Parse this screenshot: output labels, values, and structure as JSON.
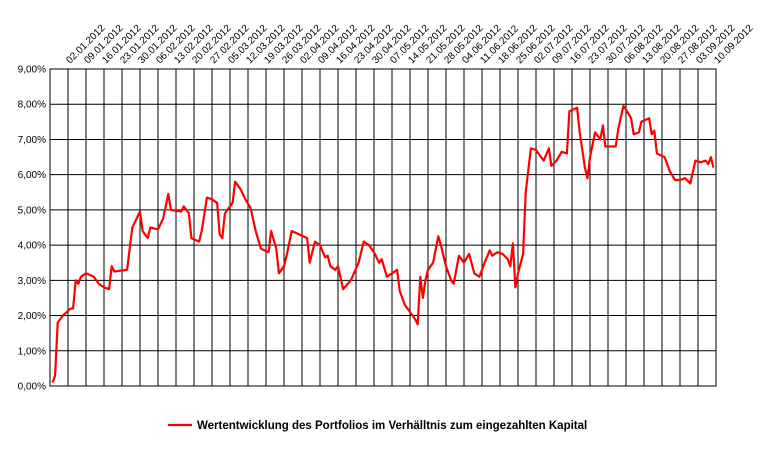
{
  "chart_data": {
    "type": "line",
    "x": [
      "27.12.2011",
      "28.12.2011",
      "29.12.2011",
      "31.12.2011",
      "03.01.2012",
      "04.01.2012",
      "05.01.2012",
      "06.01.2012",
      "07.01.2012",
      "09.01.2012",
      "12.01.2012",
      "14.01.2012",
      "16.01.2012",
      "18.01.2012",
      "19.01.2012",
      "20.01.2012",
      "25.01.2012",
      "27.01.2012",
      "30.01.2012",
      "31.01.2012",
      "02.02.2012",
      "03.02.2012",
      "06.02.2012",
      "08.02.2012",
      "10.02.2012",
      "11.02.2012",
      "15.02.2012",
      "16.02.2012",
      "18.02.2012",
      "19.02.2012",
      "22.02.2012",
      "23.02.2012",
      "25.02.2012",
      "27.02.2012",
      "29.02.2012",
      "01.03.2012",
      "02.03.2012",
      "03.03.2012",
      "06.03.2012",
      "07.03.2012",
      "09.03.2012",
      "11.03.2012",
      "13.03.2012",
      "15.03.2012",
      "17.03.2012",
      "20.03.2012",
      "21.03.2012",
      "23.03.2012",
      "24.03.2012",
      "26.03.2012",
      "27.03.2012",
      "29.03.2012",
      "01.04.2012",
      "04.04.2012",
      "05.04.2012",
      "07.04.2012",
      "09.04.2012",
      "11.04.2012",
      "12.04.2012",
      "13.04.2012",
      "15.04.2012",
      "16.04.2012",
      "18.04.2012",
      "21.04.2012",
      "24.04.2012",
      "26.04.2012",
      "28.04.2012",
      "30.04.2012",
      "02.05.2012",
      "03.05.2012",
      "05.05.2012",
      "09.05.2012",
      "10.05.2012",
      "12.05.2012",
      "14.05.2012",
      "16.05.2012",
      "17.05.2012",
      "18.05.2012",
      "19.05.2012",
      "20.05.2012",
      "21.05.2012",
      "23.05.2012",
      "25.05.2012",
      "26.05.2012",
      "28.05.2012",
      "30.05.2012",
      "31.05.2012",
      "02.06.2012",
      "04.06.2012",
      "06.06.2012",
      "08.06.2012",
      "10.06.2012",
      "12.06.2012",
      "14.06.2012",
      "15.06.2012",
      "17.06.2012",
      "19.06.2012",
      "21.06.2012",
      "22.06.2012",
      "23.06.2012",
      "24.06.2012",
      "25.06.2012",
      "27.06.2012",
      "28.06.2012",
      "30.06.2012",
      "02.07.2012",
      "04.07.2012",
      "05.07.2012",
      "07.07.2012",
      "08.07.2012",
      "10.07.2012",
      "12.07.2012",
      "14.07.2012",
      "15.07.2012",
      "18.07.2012",
      "19.07.2012",
      "21.07.2012",
      "22.07.2012",
      "23.07.2012",
      "25.07.2012",
      "27.07.2012",
      "28.07.2012",
      "29.07.2012",
      "02.08.2012",
      "03.08.2012",
      "05.08.2012",
      "06.08.2012",
      "08.08.2012",
      "09.08.2012",
      "11.08.2012",
      "12.08.2012",
      "15.08.2012",
      "16.08.2012",
      "17.08.2012",
      "18.08.2012",
      "21.08.2012",
      "23.08.2012",
      "25.08.2012",
      "27.08.2012",
      "29.08.2012",
      "31.08.2012",
      "02.09.2012",
      "04.09.2012",
      "06.09.2012",
      "07.09.2012",
      "08.09.2012",
      "09.09.2012"
    ],
    "series": [
      {
        "name": "Wertentwicklung des Portfolios im Verhälltnis zum eingezahlten Kapital",
        "color": "#ff0000",
        "values": [
          0.1,
          0.3,
          1.8,
          2.0,
          2.2,
          2.2,
          3.0,
          2.9,
          3.1,
          3.2,
          3.1,
          2.9,
          2.8,
          2.75,
          3.4,
          3.25,
          3.3,
          4.5,
          4.95,
          4.4,
          4.2,
          4.5,
          4.45,
          4.75,
          5.45,
          5.0,
          4.95,
          5.1,
          4.9,
          4.2,
          4.1,
          4.4,
          5.35,
          5.3,
          5.2,
          4.3,
          4.2,
          4.9,
          5.2,
          5.8,
          5.6,
          5.3,
          5.05,
          4.4,
          3.9,
          3.8,
          4.4,
          3.9,
          3.2,
          3.4,
          3.7,
          4.4,
          4.3,
          4.2,
          3.5,
          4.1,
          4.0,
          3.65,
          3.7,
          3.4,
          3.3,
          3.4,
          2.75,
          3.0,
          3.5,
          4.1,
          4.0,
          3.8,
          3.5,
          3.6,
          3.1,
          3.3,
          2.7,
          2.3,
          2.1,
          1.9,
          1.75,
          3.1,
          2.5,
          3.0,
          3.3,
          3.5,
          4.25,
          4.0,
          3.4,
          3.0,
          2.9,
          3.7,
          3.5,
          3.75,
          3.2,
          3.1,
          3.5,
          3.85,
          3.7,
          3.8,
          3.75,
          3.6,
          3.4,
          4.05,
          2.8,
          3.2,
          3.75,
          5.5,
          6.75,
          6.7,
          6.5,
          6.4,
          6.75,
          6.25,
          6.4,
          6.65,
          6.6,
          7.8,
          7.9,
          7.2,
          6.2,
          5.9,
          6.5,
          7.2,
          7.0,
          7.4,
          6.8,
          6.8,
          7.3,
          7.95,
          7.85,
          7.6,
          7.15,
          7.2,
          7.5,
          7.6,
          7.15,
          7.25,
          6.6,
          6.5,
          6.1,
          5.85,
          5.85,
          5.9,
          5.75,
          6.4,
          6.35,
          6.4,
          6.3,
          6.5,
          6.2
        ]
      }
    ],
    "xlim": [
      "26.12.2011",
      "10.09.2012"
    ],
    "xticks": [
      "02.01.2012",
      "09.01.2012",
      "16.01.2012",
      "23.01.2012",
      "30.01.2012",
      "06.02.2012",
      "13.02.2012",
      "20.02.2012",
      "27.02.2012",
      "05.03.2012",
      "12.03.2012",
      "19.03.2012",
      "26.03.2012",
      "02.04.2012",
      "09.04.2012",
      "16.04.2012",
      "23.04.2012",
      "30.04.2012",
      "07.05.2012",
      "14.05.2012",
      "21.05.2012",
      "28.05.2012",
      "04.06.2012",
      "11.06.2012",
      "18.06.2012",
      "25.06.2012",
      "02.07.2012",
      "09.07.2012",
      "16.07.2012",
      "23.07.2012",
      "30.07.2012",
      "06.08.2012",
      "13.08.2012",
      "20.08.2012",
      "27.08.2012",
      "03.09.2012",
      "10.09.2012"
    ],
    "ylim": [
      0,
      9
    ],
    "yticks": [
      {
        "value": 0,
        "label": "0,00%"
      },
      {
        "value": 1,
        "label": "1,00%"
      },
      {
        "value": 2,
        "label": "2,00%"
      },
      {
        "value": 3,
        "label": "3,00%"
      },
      {
        "value": 4,
        "label": "4,00%"
      },
      {
        "value": 5,
        "label": "5,00%"
      },
      {
        "value": 6,
        "label": "6,00%"
      },
      {
        "value": 7,
        "label": "7,00%"
      },
      {
        "value": 8,
        "label": "8,00%"
      },
      {
        "value": 9,
        "label": "9,00%"
      }
    ],
    "grid": true,
    "legend": "bottom"
  }
}
